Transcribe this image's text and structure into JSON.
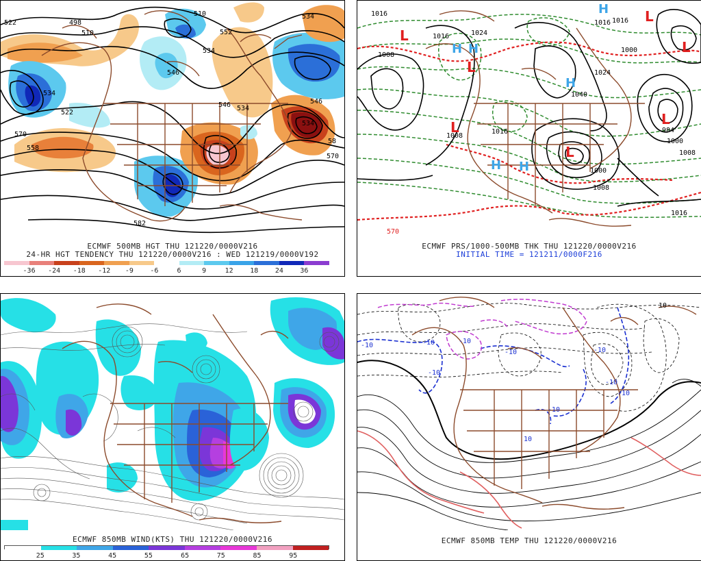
{
  "panels": {
    "tl": {
      "title": "ECMWF 500MB HGT THU 121220/0000V216",
      "subtitle": "24-HR HGT TENDENCY THU 121220/0000V216 : WED 121219/0000V192",
      "colorbar": {
        "labels": [
          "-36",
          "-24",
          "-18",
          "-12",
          "-9",
          "-6",
          "6",
          "9",
          "12",
          "18",
          "24",
          "36"
        ],
        "colors": [
          "#f7c6d0",
          "#e8807a",
          "#c8411c",
          "#d9651e",
          "#f0a050",
          "#f7c98a",
          "#ffffff",
          "#b3ecf5",
          "#5cc9ee",
          "#39a3e8",
          "#2b6fd8",
          "#1028b8",
          "#8b3cd0"
        ]
      },
      "contour_labels": [
        "498",
        "510",
        "510",
        "522",
        "534",
        "534",
        "546",
        "546",
        "558",
        "570",
        "570",
        "582",
        "534",
        "522",
        "534",
        "552",
        "546",
        "534",
        "58"
      ]
    },
    "tr": {
      "title": "ECMWF PRS/1000-500MB THK THU 121220/0000V216",
      "subtitle": "INITIAL TIME = 121211/0000F216",
      "contour_labels": [
        "1016",
        "1016",
        "1024",
        "1016",
        "1024",
        "1008",
        "1040",
        "1008",
        "1008",
        "1016",
        "1000",
        "1016",
        "1016",
        "1008",
        "1000",
        "1000",
        "570",
        "984"
      ],
      "centers_low": [
        "L",
        "L",
        "L",
        "L",
        "L",
        "L",
        "L"
      ],
      "centers_high": [
        "H",
        "H",
        "H",
        "H",
        "H",
        "H"
      ]
    },
    "bl": {
      "title": "ECMWF 850MB WIND(KTS) THU 121220/0000V216",
      "colorbar": {
        "labels": [
          "25",
          "35",
          "45",
          "55",
          "65",
          "75",
          "85",
          "95"
        ],
        "colors": [
          "#ffffff",
          "#26e0e6",
          "#3fa6e8",
          "#2a62d8",
          "#7b36d8",
          "#b53fe0",
          "#e838d8",
          "#f2a0c0",
          "#c02020"
        ]
      }
    },
    "br": {
      "title": "ECMWF 850MB TEMP THU 121220/0000V216",
      "contour_labels": [
        "-10",
        "-10",
        "-10",
        "-10",
        "-10",
        "-10",
        "-10",
        "-10",
        "-10",
        "10",
        "10"
      ]
    }
  }
}
